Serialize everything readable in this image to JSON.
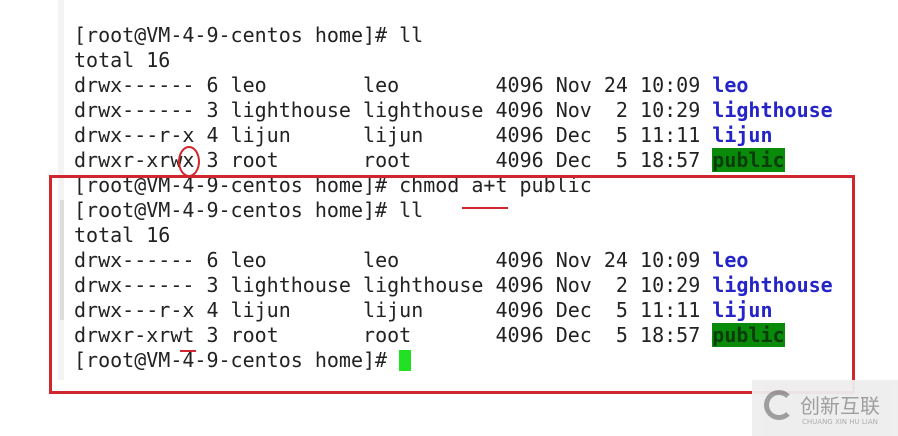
{
  "terminal": {
    "prompt": "[root@VM-4-9-centos home]# ",
    "block1": {
      "command": "ll",
      "total": "total 16",
      "rows": [
        {
          "perm": "drwx------",
          "links": "6",
          "owner": "leo       ",
          "group": "leo       ",
          "size": "4096",
          "month": "Nov",
          "day": "24",
          "time": "10:09",
          "name": "leo"
        },
        {
          "perm": "drwx------",
          "links": "3",
          "owner": "lighthouse",
          "group": "lighthouse",
          "size": "4096",
          "month": "Nov",
          "day": " 2",
          "time": "10:29",
          "name": "lighthouse"
        },
        {
          "perm": "drwx---r-x",
          "links": "4",
          "owner": "lijun     ",
          "group": "lijun     ",
          "size": "4096",
          "month": "Dec",
          "day": " 5",
          "time": "11:11",
          "name": "lijun"
        },
        {
          "perm": "drwxr-xrwx",
          "links": "3",
          "owner": "root      ",
          "group": "root      ",
          "size": "4096",
          "month": "Dec",
          "day": " 5",
          "time": "18:57",
          "name": "public"
        }
      ]
    },
    "chmod_command": "chmod a+t public",
    "block2": {
      "command": "ll",
      "total": "total 16",
      "rows": [
        {
          "perm": "drwx------",
          "links": "6",
          "owner": "leo       ",
          "group": "leo       ",
          "size": "4096",
          "month": "Nov",
          "day": "24",
          "time": "10:09",
          "name": "leo"
        },
        {
          "perm": "drwx------",
          "links": "3",
          "owner": "lighthouse",
          "group": "lighthouse",
          "size": "4096",
          "month": "Nov",
          "day": " 2",
          "time": "10:29",
          "name": "lighthouse"
        },
        {
          "perm": "drwx---r-x",
          "links": "4",
          "owner": "lijun     ",
          "group": "lijun     ",
          "size": "4096",
          "month": "Dec",
          "day": " 5",
          "time": "11:11",
          "name": "lijun"
        },
        {
          "perm": "drwxr-xrwt",
          "links": "3",
          "owner": "root      ",
          "group": "root      ",
          "size": "4096",
          "month": "Dec",
          "day": " 5",
          "time": "18:57",
          "name": "public"
        }
      ]
    }
  },
  "watermark": {
    "text": "创新互联",
    "sub": "CHUANG XIN HU LIAN"
  },
  "colors": {
    "annotation": "#d0262c",
    "dir": "#2424c8",
    "sticky_bg": "#0a8a0a",
    "cursor": "#22e022"
  }
}
